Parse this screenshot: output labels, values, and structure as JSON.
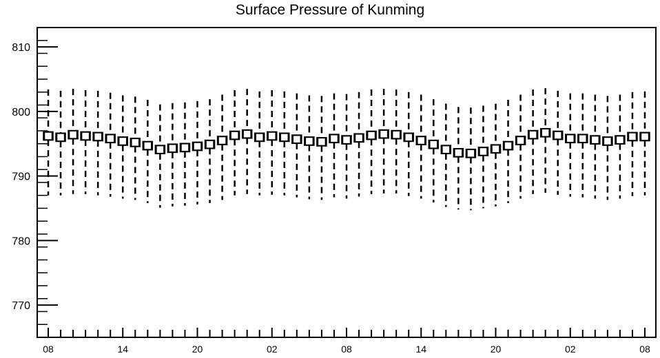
{
  "chart_data": {
    "type": "boxplot",
    "title": "Surface Pressure of Kunming",
    "xlabel": "",
    "ylabel": "",
    "ylim": [
      765,
      813
    ],
    "yticks": [
      770,
      780,
      790,
      800,
      810
    ],
    "ytick_labels": [
      "770",
      "780",
      "790",
      "800",
      "810"
    ],
    "xtick_labels": [
      "08",
      "14",
      "20",
      "02",
      "08",
      "14",
      "20",
      "02",
      "08"
    ],
    "xtick_every_n_boxes": 6,
    "grid": false,
    "series": [
      {
        "median": [
          796.2,
          796.0,
          796.4,
          796.2,
          796.1,
          795.8,
          795.4,
          795.2,
          794.7,
          794.1,
          794.3,
          794.4,
          794.6,
          794.9,
          795.5,
          796.3,
          796.5,
          796.0,
          796.2,
          796.0,
          795.7,
          795.4,
          795.3,
          795.8,
          795.6,
          795.9,
          796.3,
          796.5,
          796.4,
          796.0,
          795.5,
          794.9,
          794.1,
          793.6,
          793.5,
          793.8,
          794.2,
          794.7,
          795.5,
          796.4,
          796.7,
          796.3,
          795.8,
          795.8,
          795.6,
          795.4,
          795.6,
          796.1,
          796.1
        ],
        "q1": [
          795.6,
          795.4,
          795.8,
          795.6,
          795.5,
          795.2,
          794.8,
          794.6,
          794.1,
          793.5,
          793.7,
          793.8,
          794.0,
          794.3,
          794.9,
          795.7,
          795.9,
          795.4,
          795.6,
          795.4,
          795.1,
          794.8,
          794.7,
          795.2,
          795.0,
          795.3,
          795.7,
          795.9,
          795.8,
          795.4,
          794.9,
          794.3,
          793.5,
          793.0,
          792.9,
          793.2,
          793.6,
          794.1,
          794.9,
          795.8,
          796.1,
          795.7,
          795.2,
          795.2,
          795.0,
          794.8,
          795.0,
          795.5,
          795.5
        ],
        "q3": [
          796.8,
          796.6,
          797.0,
          796.8,
          796.7,
          796.4,
          796.0,
          795.8,
          795.3,
          794.7,
          794.9,
          795.0,
          795.2,
          795.5,
          796.1,
          796.9,
          797.1,
          796.6,
          796.8,
          796.6,
          796.3,
          796.0,
          795.9,
          796.4,
          796.2,
          796.5,
          796.9,
          797.1,
          797.0,
          796.6,
          796.1,
          795.5,
          794.7,
          794.2,
          794.1,
          794.4,
          794.8,
          795.3,
          796.1,
          797.0,
          797.3,
          796.9,
          796.4,
          796.4,
          796.2,
          796.0,
          796.2,
          796.7,
          796.7
        ],
        "whisker_low": [
          787.0,
          787.0,
          787.2,
          787.2,
          787.0,
          786.8,
          786.5,
          786.3,
          785.8,
          785.1,
          785.3,
          785.4,
          785.6,
          785.8,
          786.3,
          787.0,
          787.2,
          787.0,
          787.1,
          787.0,
          786.7,
          786.4,
          786.3,
          786.7,
          786.5,
          786.8,
          787.2,
          787.3,
          787.3,
          786.9,
          786.5,
          785.9,
          785.2,
          784.8,
          784.7,
          785.0,
          785.3,
          785.8,
          786.5,
          787.2,
          787.4,
          787.1,
          786.8,
          786.7,
          786.5,
          786.3,
          786.5,
          786.9,
          787.0
        ],
        "whisker_high": [
          803.4,
          803.2,
          803.5,
          803.3,
          803.2,
          802.9,
          802.5,
          802.3,
          801.8,
          801.1,
          801.3,
          801.4,
          801.6,
          801.9,
          802.6,
          803.3,
          803.5,
          803.1,
          803.3,
          803.1,
          802.8,
          802.5,
          802.4,
          802.8,
          802.7,
          803.0,
          803.4,
          803.5,
          803.4,
          803.0,
          802.6,
          801.9,
          801.2,
          800.7,
          800.6,
          800.9,
          801.2,
          801.8,
          802.6,
          803.4,
          803.6,
          803.2,
          802.8,
          802.8,
          802.6,
          802.4,
          802.6,
          803.0,
          803.1
        ]
      }
    ]
  }
}
